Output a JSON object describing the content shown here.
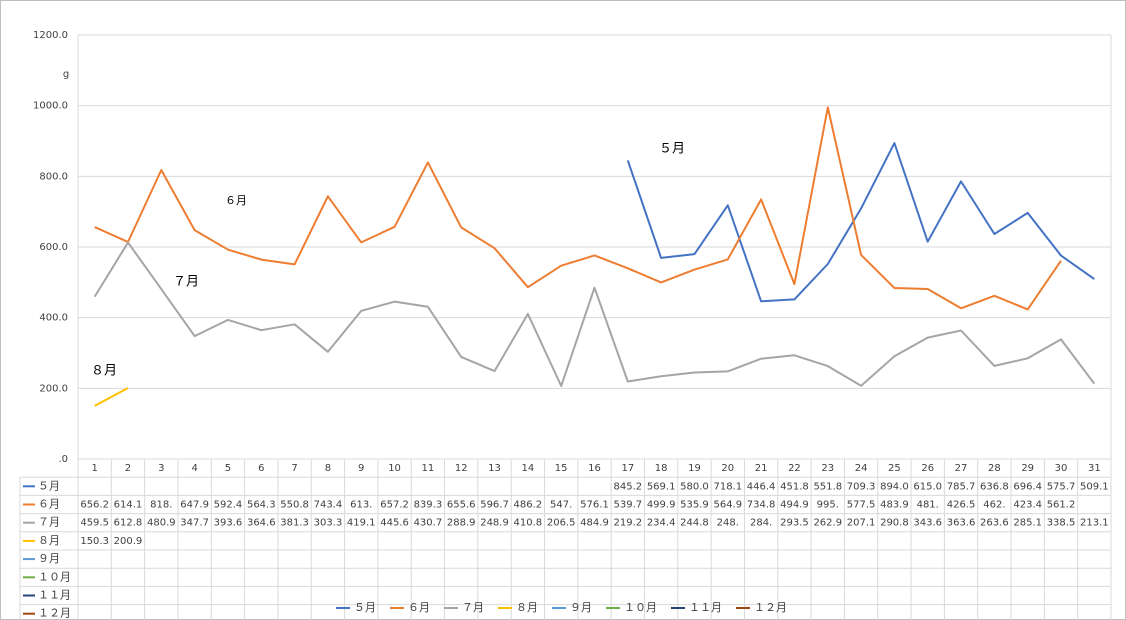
{
  "chart_data": {
    "type": "line",
    "y_label": "g",
    "annotations": [
      "５月",
      "６月",
      "７月",
      "８月"
    ],
    "categories": [
      "1",
      "2",
      "3",
      "4",
      "5",
      "6",
      "7",
      "8",
      "9",
      "10",
      "11",
      "12",
      "13",
      "14",
      "15",
      "16",
      "17",
      "18",
      "19",
      "20",
      "21",
      "22",
      "23",
      "24",
      "25",
      "26",
      "27",
      "28",
      "29",
      "30",
      "31"
    ],
    "ylim": [
      0,
      1200
    ],
    "yticks": [
      {
        "value": 0,
        "label": ".0"
      },
      {
        "value": 200,
        "label": "200.0"
      },
      {
        "value": 400,
        "label": "400.0"
      },
      {
        "value": 600,
        "label": "600.0"
      },
      {
        "value": 800,
        "label": "800.0"
      },
      {
        "value": 1000,
        "label": "1000.0"
      },
      {
        "value": 1200,
        "label": "1200.0"
      }
    ],
    "grid": true,
    "legend": "bottom",
    "series": [
      {
        "name": "５月",
        "color": "#4472c4",
        "values": [
          null,
          null,
          null,
          null,
          null,
          null,
          null,
          null,
          null,
          null,
          null,
          null,
          null,
          null,
          null,
          null,
          845.2,
          569.1,
          580.0,
          718.1,
          446.4,
          451.8,
          551.8,
          709.3,
          894.0,
          615.0,
          785.7,
          636.8,
          696.4,
          575.7,
          509.1
        ],
        "value_labels": [
          null,
          null,
          null,
          null,
          null,
          null,
          null,
          null,
          null,
          null,
          null,
          null,
          null,
          null,
          null,
          null,
          "845.2",
          "569.1",
          "580.0",
          "718.1",
          "446.4",
          "451.8",
          "551.8",
          "709.3",
          "894.0",
          "615.0",
          "785.7",
          "636.8",
          "696.4",
          "575.7",
          "509.1"
        ]
      },
      {
        "name": "６月",
        "color": "#ed7d31",
        "values": [
          656.2,
          614.1,
          818,
          647.9,
          592.4,
          564.3,
          550.8,
          743.4,
          613,
          657.2,
          839.3,
          655.6,
          596.7,
          486.2,
          547,
          576.1,
          539.7,
          499.9,
          535.9,
          564.9,
          734.8,
          494.9,
          995,
          577.5,
          483.9,
          481,
          426.5,
          462,
          423.4,
          561.2,
          null
        ],
        "value_labels": [
          "656.2",
          "614.1",
          "818.",
          "647.9",
          "592.4",
          "564.3",
          "550.8",
          "743.4",
          "613.",
          "657.2",
          "839.3",
          "655.6",
          "596.7",
          "486.2",
          "547.",
          "576.1",
          "539.7",
          "499.9",
          "535.9",
          "564.9",
          "734.8",
          "494.9",
          "995.",
          "577.5",
          "483.9",
          "481.",
          "426.5",
          "462.",
          "423.4",
          "561.2",
          null
        ]
      },
      {
        "name": "７月",
        "color": "#a5a5a5",
        "values": [
          459.5,
          612.8,
          480.9,
          347.7,
          393.6,
          364.6,
          381.3,
          303.3,
          419.1,
          445.6,
          430.7,
          288.9,
          248.9,
          410.8,
          206.5,
          484.9,
          219.2,
          234.4,
          244.8,
          248,
          284,
          293.5,
          262.9,
          207.1,
          290.8,
          343.6,
          363.6,
          263.6,
          285.1,
          338.5,
          213.1
        ],
        "value_labels": [
          "459.5",
          "612.8",
          "480.9",
          "347.7",
          "393.6",
          "364.6",
          "381.3",
          "303.3",
          "419.1",
          "445.6",
          "430.7",
          "288.9",
          "248.9",
          "410.8",
          "206.5",
          "484.9",
          "219.2",
          "234.4",
          "244.8",
          "248.",
          "284.",
          "293.5",
          "262.9",
          "207.1",
          "290.8",
          "343.6",
          "363.6",
          "263.6",
          "285.1",
          "338.5",
          "213.1"
        ]
      },
      {
        "name": "８月",
        "color": "#ffc000",
        "values": [
          150.3,
          200.9,
          null,
          null,
          null,
          null,
          null,
          null,
          null,
          null,
          null,
          null,
          null,
          null,
          null,
          null,
          null,
          null,
          null,
          null,
          null,
          null,
          null,
          null,
          null,
          null,
          null,
          null,
          null,
          null,
          null
        ],
        "value_labels": [
          "150.3",
          "200.9",
          null,
          null,
          null,
          null,
          null,
          null,
          null,
          null,
          null,
          null,
          null,
          null,
          null,
          null,
          null,
          null,
          null,
          null,
          null,
          null,
          null,
          null,
          null,
          null,
          null,
          null,
          null,
          null,
          null
        ]
      },
      {
        "name": "９月",
        "color": "#5b9bd5",
        "values": [
          null,
          null,
          null,
          null,
          null,
          null,
          null,
          null,
          null,
          null,
          null,
          null,
          null,
          null,
          null,
          null,
          null,
          null,
          null,
          null,
          null,
          null,
          null,
          null,
          null,
          null,
          null,
          null,
          null,
          null,
          null
        ]
      },
      {
        "name": "１０月",
        "color": "#70ad47",
        "values": [
          null,
          null,
          null,
          null,
          null,
          null,
          null,
          null,
          null,
          null,
          null,
          null,
          null,
          null,
          null,
          null,
          null,
          null,
          null,
          null,
          null,
          null,
          null,
          null,
          null,
          null,
          null,
          null,
          null,
          null,
          null
        ]
      },
      {
        "name": "１１月",
        "color": "#264478",
        "values": [
          null,
          null,
          null,
          null,
          null,
          null,
          null,
          null,
          null,
          null,
          null,
          null,
          null,
          null,
          null,
          null,
          null,
          null,
          null,
          null,
          null,
          null,
          null,
          null,
          null,
          null,
          null,
          null,
          null,
          null,
          null
        ]
      },
      {
        "name": "１２月",
        "color": "#9e480e",
        "values": [
          null,
          null,
          null,
          null,
          null,
          null,
          null,
          null,
          null,
          null,
          null,
          null,
          null,
          null,
          null,
          null,
          null,
          null,
          null,
          null,
          null,
          null,
          null,
          null,
          null,
          null,
          null,
          null,
          null,
          null,
          null
        ]
      }
    ]
  }
}
